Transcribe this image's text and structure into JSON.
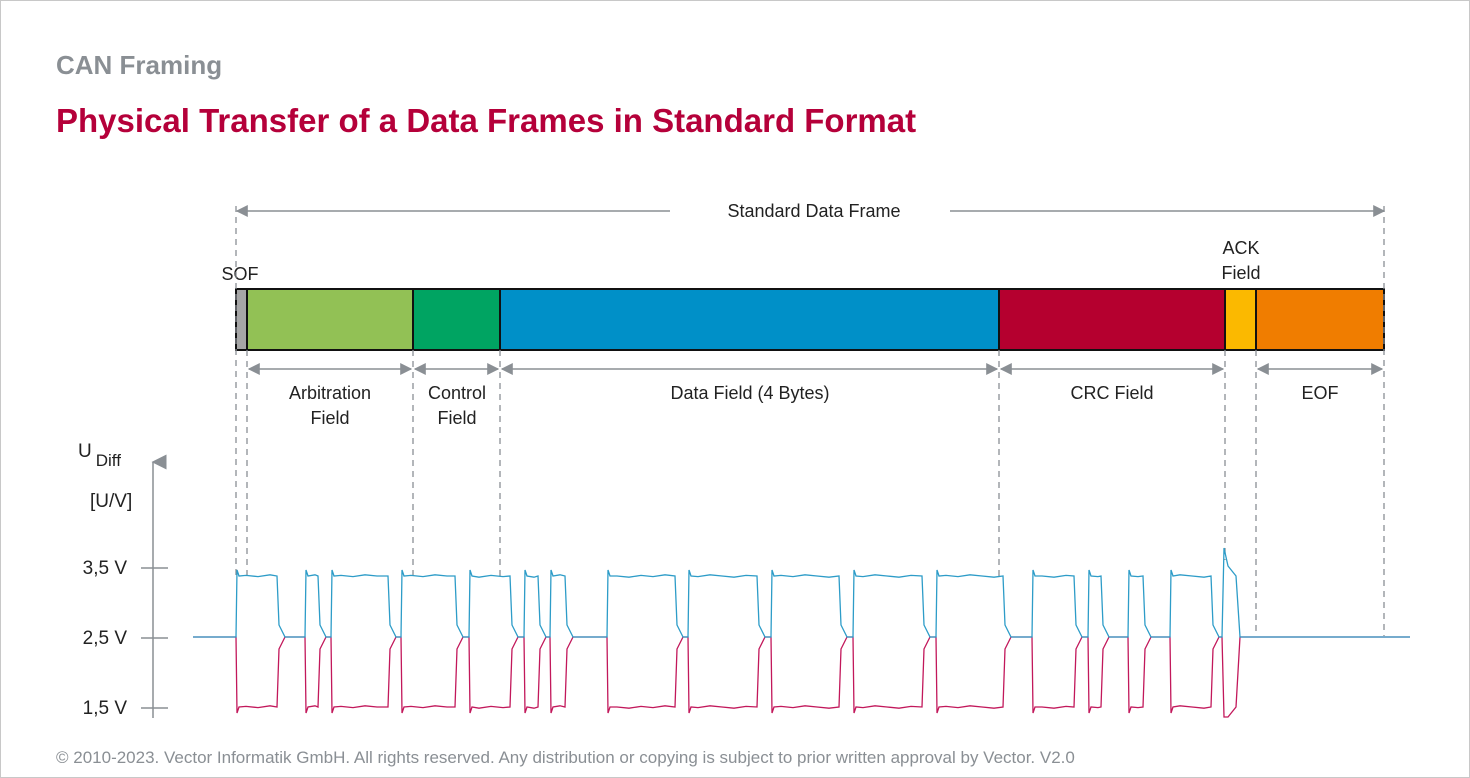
{
  "header": {
    "section": "CAN Framing",
    "title": "Physical Transfer of a Data Frames in Standard Format"
  },
  "frame": {
    "title": "Standard Data Frame",
    "sof_label": "SOF",
    "ack_label_line1": "ACK",
    "ack_label_line2": "Field",
    "fields": [
      {
        "id": "sof",
        "color": "#a6a6a6"
      },
      {
        "id": "arbitration",
        "label1": "Arbitration",
        "label2": "Field",
        "color": "#92c155"
      },
      {
        "id": "control",
        "label1": "Control",
        "label2": "Field",
        "color": "#00a462"
      },
      {
        "id": "data",
        "label1": "Data Field (4 Bytes)",
        "label2": "",
        "color": "#0090c8"
      },
      {
        "id": "crc",
        "label1": "CRC Field",
        "label2": "",
        "color": "#b5002f"
      },
      {
        "id": "ack",
        "color": "#fbb900"
      },
      {
        "id": "eof",
        "label1": "EOF",
        "label2": "",
        "color": "#f07d00"
      }
    ]
  },
  "axis": {
    "label_main": "U",
    "label_sub": "Diff",
    "unit": "[U/V]",
    "ticks": [
      "3,5 V",
      "2,5 V",
      "1,5 V"
    ]
  },
  "signal": {
    "high_color": "#2d9cc8",
    "low_color": "#c2185b",
    "levels_v": {
      "high": 3.5,
      "recessive": 2.5,
      "low": 1.5
    }
  },
  "footer": {
    "text": "© 2010-2023. Vector Informatik GmbH. All rights reserved. Any distribution or copying is subject to prior written approval by Vector. V2.0"
  }
}
